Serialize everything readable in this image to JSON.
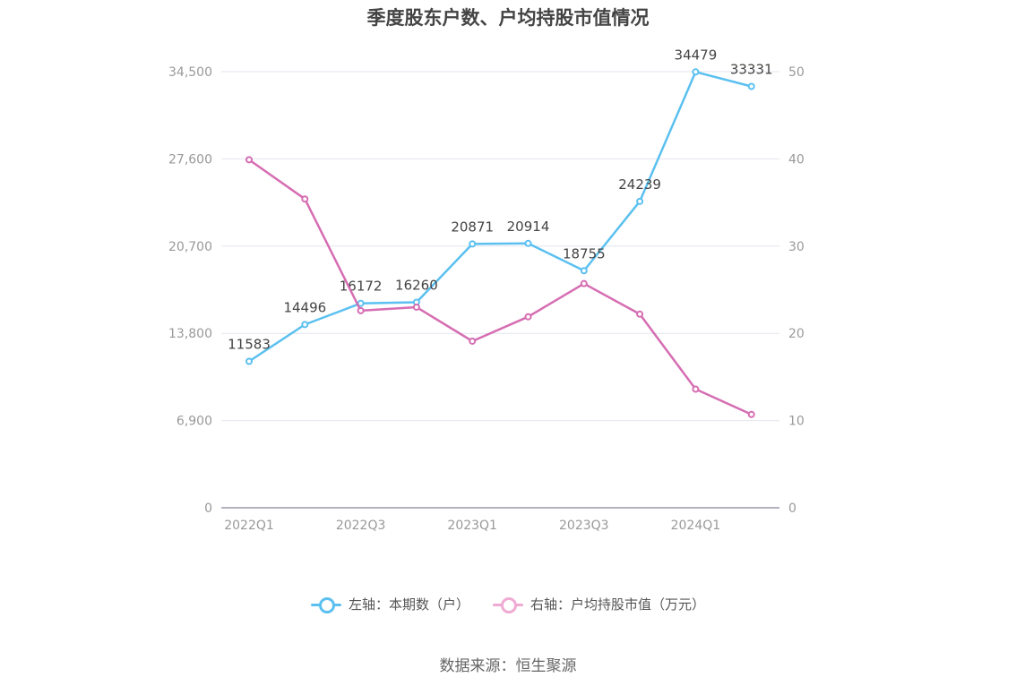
{
  "chart_data": {
    "type": "line",
    "title": "季度股东户数、户均持股市值情况",
    "categories": [
      "2022Q1",
      "2022Q2",
      "2022Q3",
      "2022Q4",
      "2023Q1",
      "2023Q2",
      "2023Q3",
      "2023Q4",
      "2024Q1",
      "2024Q2"
    ],
    "x_tick_labels": [
      "2022Q1",
      "2022Q3",
      "2023Q1",
      "2023Q3",
      "2024Q1"
    ],
    "left_axis": {
      "ticks": [
        "0",
        "6,900",
        "13,800",
        "20,700",
        "27,600",
        "34,500"
      ],
      "ylim": [
        0,
        34500
      ]
    },
    "right_axis": {
      "ticks": [
        "0",
        "10",
        "20",
        "30",
        "40",
        "50"
      ],
      "ylim": [
        0,
        50
      ]
    },
    "grid": true,
    "legend_position": "bottom",
    "series": [
      {
        "name": "左轴：本期数（户）",
        "axis": "left",
        "color": "#5bc0f0",
        "values": [
          11583,
          14496,
          16172,
          16260,
          20871,
          20914,
          18755,
          24239,
          34479,
          33331
        ],
        "labels": [
          "11583",
          "14496",
          "16172",
          "16260",
          "20871",
          "20914",
          "18755",
          "24239",
          "34479",
          "33331"
        ]
      },
      {
        "name": "右轴：户均持股市值（万元）",
        "axis": "right",
        "color": "#d66db2",
        "values": [
          39.9,
          35.4,
          22.6,
          23.0,
          19.1,
          21.9,
          25.7,
          22.2,
          13.6,
          10.7
        ]
      }
    ]
  },
  "source": "数据来源：恒生聚源"
}
